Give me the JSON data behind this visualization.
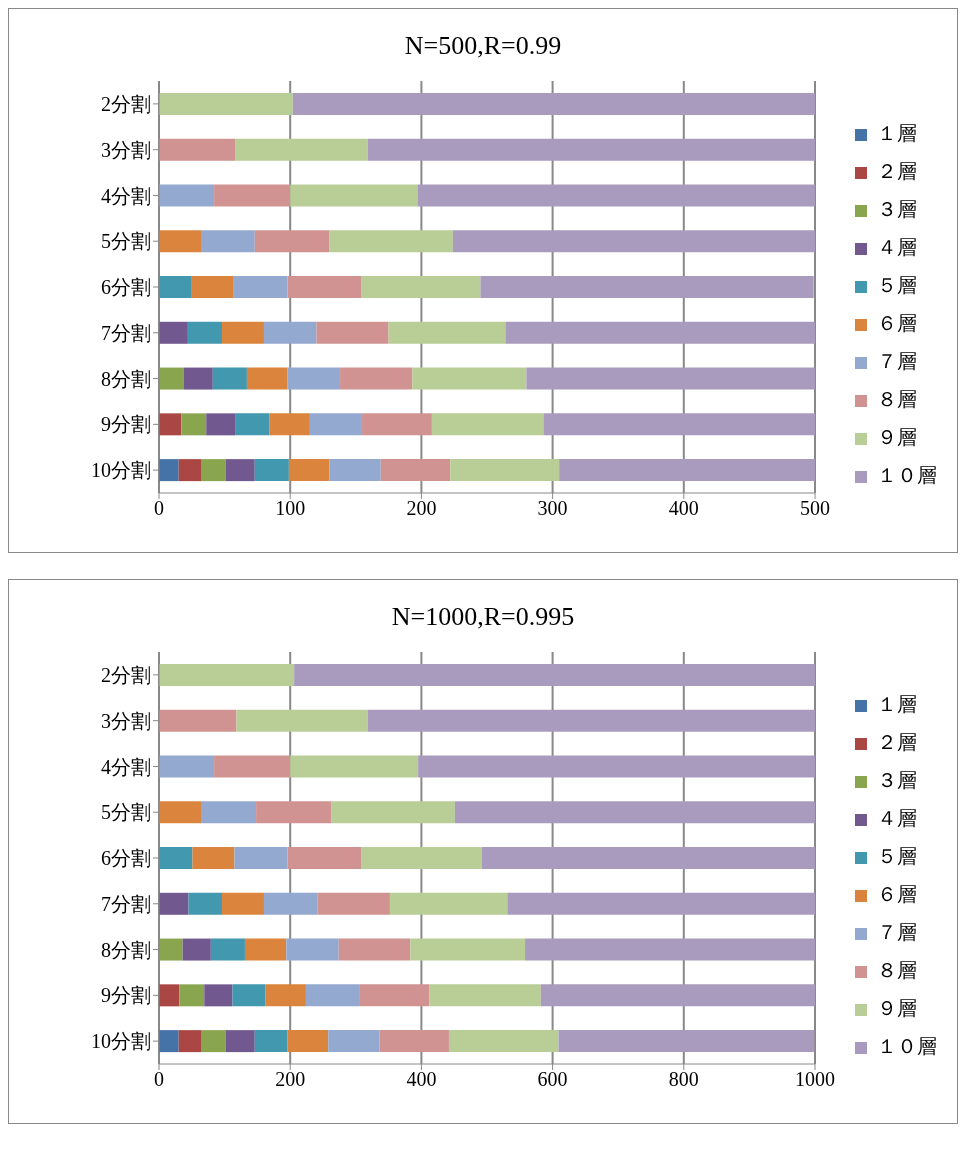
{
  "chart_data": [
    {
      "type": "bar",
      "orientation": "horizontal",
      "stacked": true,
      "title": "N=500,R=0.99",
      "categories": [
        "2分割",
        "3分割",
        "4分割",
        "5分割",
        "6分割",
        "7分割",
        "8分割",
        "9分割",
        "10分割"
      ],
      "xlim": [
        0,
        500
      ],
      "xticks": [
        0,
        100,
        200,
        300,
        400,
        500
      ],
      "grid": "x",
      "legend": "right",
      "series": [
        {
          "name": "１層",
          "color": "#4572a7",
          "values": [
            null,
            null,
            null,
            null,
            null,
            null,
            null,
            null,
            15
          ]
        },
        {
          "name": "２層",
          "color": "#aa4643",
          "values": [
            null,
            null,
            null,
            null,
            null,
            null,
            null,
            17,
            17
          ]
        },
        {
          "name": "３層",
          "color": "#89a54e",
          "values": [
            null,
            null,
            null,
            null,
            null,
            null,
            19,
            19,
            19
          ]
        },
        {
          "name": "４層",
          "color": "#71588f",
          "values": [
            null,
            null,
            null,
            null,
            null,
            22,
            22,
            22,
            22
          ]
        },
        {
          "name": "５層",
          "color": "#4198af",
          "values": [
            null,
            null,
            null,
            null,
            25,
            26,
            26,
            26,
            26
          ]
        },
        {
          "name": "６層",
          "color": "#db843d",
          "values": [
            null,
            null,
            null,
            32,
            32,
            32,
            31,
            31,
            31
          ]
        },
        {
          "name": "７層",
          "color": "#93a9cf",
          "values": [
            null,
            null,
            42,
            41,
            41,
            40,
            40,
            39,
            39
          ]
        },
        {
          "name": "８層",
          "color": "#d19392",
          "values": [
            null,
            58,
            58,
            57,
            56,
            55,
            55,
            54,
            53
          ]
        },
        {
          "name": "９層",
          "color": "#b9cd96",
          "values": [
            102,
            101,
            97,
            94,
            91,
            89,
            87,
            85,
            83
          ]
        },
        {
          "name": "１０層",
          "color": "#a99bbd",
          "values": [
            398,
            341,
            303,
            276,
            254,
            236,
            220,
            207,
            195
          ]
        }
      ]
    },
    {
      "type": "bar",
      "orientation": "horizontal",
      "stacked": true,
      "title": "N=1000,R=0.995",
      "categories": [
        "2分割",
        "3分割",
        "4分割",
        "5分割",
        "6分割",
        "7分割",
        "8分割",
        "9分割",
        "10分割"
      ],
      "xlim": [
        0,
        1000
      ],
      "xticks": [
        0,
        200,
        400,
        600,
        800,
        1000
      ],
      "grid": "x",
      "legend": "right",
      "series": [
        {
          "name": "１層",
          "color": "#4572a7",
          "values": [
            null,
            null,
            null,
            null,
            null,
            null,
            null,
            null,
            30
          ]
        },
        {
          "name": "２層",
          "color": "#aa4643",
          "values": [
            null,
            null,
            null,
            null,
            null,
            null,
            null,
            31,
            34
          ]
        },
        {
          "name": "３層",
          "color": "#89a54e",
          "values": [
            null,
            null,
            null,
            null,
            null,
            null,
            36,
            38,
            38
          ]
        },
        {
          "name": "４層",
          "color": "#71588f",
          "values": [
            null,
            null,
            null,
            null,
            null,
            45,
            43,
            43,
            44
          ]
        },
        {
          "name": "５層",
          "color": "#4198af",
          "values": [
            null,
            null,
            null,
            null,
            51,
            51,
            52,
            50,
            50
          ]
        },
        {
          "name": "６層",
          "color": "#db843d",
          "values": [
            null,
            null,
            null,
            64,
            64,
            64,
            63,
            62,
            62
          ]
        },
        {
          "name": "７層",
          "color": "#93a9cf",
          "values": [
            null,
            null,
            84,
            84,
            81,
            82,
            80,
            81,
            78
          ]
        },
        {
          "name": "８層",
          "color": "#d19392",
          "values": [
            null,
            118,
            116,
            115,
            112,
            110,
            109,
            107,
            106
          ]
        },
        {
          "name": "９層",
          "color": "#b9cd96",
          "values": [
            206,
            200,
            195,
            188,
            184,
            179,
            175,
            170,
            167
          ]
        },
        {
          "name": "１０層",
          "color": "#a99bbd",
          "values": [
            794,
            682,
            605,
            549,
            508,
            469,
            442,
            418,
            390
          ]
        }
      ]
    }
  ]
}
